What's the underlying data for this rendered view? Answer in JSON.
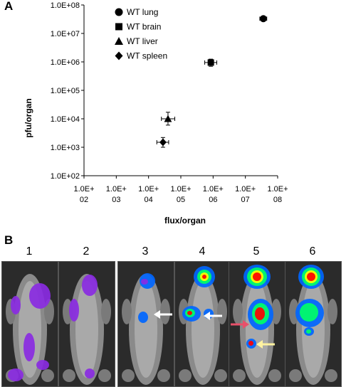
{
  "panels": {
    "a_label": "A",
    "b_label": "B"
  },
  "chart_data": {
    "type": "scatter",
    "xlabel": "flux/organ",
    "ylabel": "pfu/organ",
    "x_scale": "log",
    "y_scale": "log",
    "xlim": [
      100,
      100000000
    ],
    "ylim": [
      100,
      100000000
    ],
    "x_ticks": [
      "1.0E+02",
      "1.0E+03",
      "1.0E+04",
      "1.0E+05",
      "1.0E+06",
      "1.0E+07",
      "1.0E+08"
    ],
    "y_ticks": [
      "1.0E+02",
      "1.0E+03",
      "1.0E+04",
      "1.0E+05",
      "1.0E+06",
      "1.0E+07",
      "1.0E+08"
    ],
    "legend_position": "top-left",
    "series": [
      {
        "name": "WT lung",
        "marker": "circle",
        "x": 36000000,
        "y": 33000000,
        "x_err": [
          28000000,
          46000000
        ],
        "y_err": [
          27000000,
          40000000
        ]
      },
      {
        "name": "WT brain",
        "marker": "square",
        "x": 850000,
        "y": 950000,
        "x_err": [
          550000,
          1300000
        ],
        "y_err": [
          700000,
          1250000
        ]
      },
      {
        "name": "WT liver",
        "marker": "triangle",
        "x": 40000,
        "y": 10000,
        "x_err": [
          25000,
          65000
        ],
        "y_err": [
          6000,
          17000
        ]
      },
      {
        "name": "WT spleen",
        "marker": "diamond",
        "x": 28000,
        "y": 1500,
        "x_err": [
          18000,
          42000
        ],
        "y_err": [
          1000,
          2200
        ]
      }
    ]
  },
  "imaging": {
    "labels": [
      "1",
      "2",
      "3",
      "4",
      "5",
      "6"
    ]
  },
  "colors": {
    "hot": "#ff0000",
    "warm": "#ffff00",
    "mid": "#00ff66",
    "cool": "#0066ff",
    "low": "#8a2be2",
    "arrow_white": "#ffffff",
    "arrow_red": "#e8506a",
    "arrow_yellow": "#fff2a0"
  }
}
